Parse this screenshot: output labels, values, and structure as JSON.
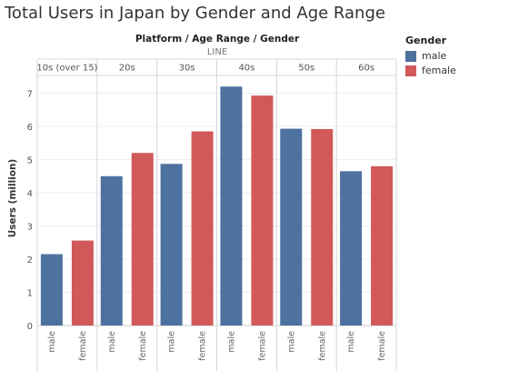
{
  "title": "Total Users in Japan by Gender and Age Range",
  "header": {
    "columns_label": "Platform / Age Range / Gender",
    "platform": "LINE"
  },
  "legend": {
    "title": "Gender",
    "items": [
      {
        "label": "male",
        "color": "#4e72a0"
      },
      {
        "label": "female",
        "color": "#d15959"
      }
    ]
  },
  "chart_data": {
    "type": "bar",
    "title": "Total Users in Japan by Gender and Age Range",
    "ylabel": "Users (million)",
    "ylim": [
      0,
      7.6
    ],
    "yticks": [
      0,
      1,
      2,
      3,
      4,
      5,
      6,
      7
    ],
    "grid": true,
    "legend_position": "top-right",
    "platform": "LINE",
    "categories": [
      "10s (over 15)",
      "20s",
      "30s",
      "40s",
      "50s",
      "60s"
    ],
    "genders": [
      "male",
      "female"
    ],
    "series": [
      {
        "name": "male",
        "color": "#4e72a0",
        "values": [
          2.15,
          4.5,
          4.87,
          7.2,
          5.93,
          4.65
        ]
      },
      {
        "name": "female",
        "color": "#d15959",
        "values": [
          2.56,
          5.2,
          5.85,
          6.93,
          5.92,
          4.8
        ]
      }
    ]
  }
}
